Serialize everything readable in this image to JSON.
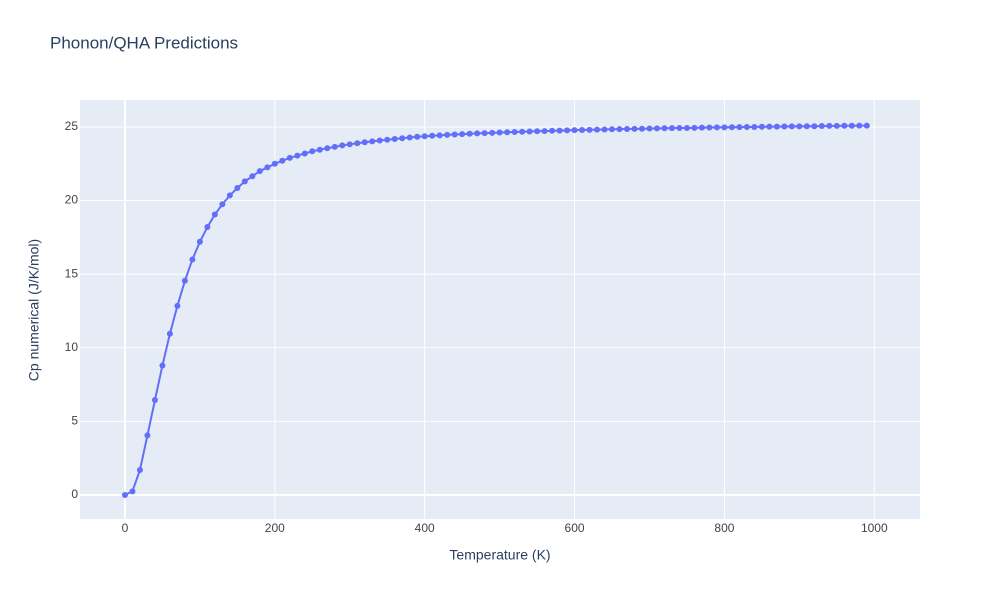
{
  "chart_data": {
    "type": "line",
    "title": "Phonon/QHA Predictions",
    "x_label": "Temperature (K)",
    "y_label": "Cp numerical (J/K/mol)",
    "x": [
      0,
      10,
      20,
      30,
      40,
      50,
      60,
      70,
      80,
      90,
      100,
      110,
      120,
      130,
      140,
      150,
      160,
      170,
      180,
      190,
      200,
      210,
      220,
      230,
      240,
      250,
      260,
      270,
      280,
      290,
      300,
      310,
      320,
      330,
      340,
      350,
      360,
      370,
      380,
      390,
      400,
      410,
      420,
      430,
      440,
      450,
      460,
      470,
      480,
      490,
      500,
      510,
      520,
      530,
      540,
      550,
      560,
      570,
      580,
      590,
      600,
      610,
      620,
      630,
      640,
      650,
      660,
      670,
      680,
      690,
      700,
      710,
      720,
      730,
      740,
      750,
      760,
      770,
      780,
      790,
      800,
      810,
      820,
      830,
      840,
      850,
      860,
      870,
      880,
      890,
      900,
      910,
      920,
      930,
      940,
      950,
      960,
      970,
      980,
      990
    ],
    "series": [
      {
        "name": "Cp numerical",
        "color": "#636efa",
        "values": [
          0,
          0.25,
          1.7,
          4.05,
          6.45,
          8.8,
          10.95,
          12.85,
          14.55,
          16.0,
          17.2,
          18.2,
          19.05,
          19.75,
          20.35,
          20.85,
          21.3,
          21.65,
          22.0,
          22.25,
          22.5,
          22.7,
          22.9,
          23.05,
          23.2,
          23.35,
          23.45,
          23.55,
          23.65,
          23.75,
          23.82,
          23.89,
          23.96,
          24.02,
          24.08,
          24.13,
          24.18,
          24.23,
          24.28,
          24.33,
          24.37,
          24.4,
          24.43,
          24.46,
          24.49,
          24.51,
          24.54,
          24.56,
          24.58,
          24.6,
          24.62,
          24.64,
          24.66,
          24.67,
          24.69,
          24.71,
          24.72,
          24.74,
          24.75,
          24.77,
          24.78,
          24.79,
          24.8,
          24.82,
          24.83,
          24.84,
          24.85,
          24.86,
          24.87,
          24.88,
          24.89,
          24.9,
          24.91,
          24.92,
          24.93,
          24.93,
          24.94,
          24.95,
          24.96,
          24.97,
          24.97,
          24.98,
          24.99,
          25.0,
          25.0,
          25.01,
          25.02,
          25.02,
          25.03,
          25.04,
          25.04,
          25.05,
          25.05,
          25.06,
          25.07,
          25.07,
          25.08,
          25.08,
          25.09,
          25.09
        ]
      }
    ],
    "xlim": [
      -60,
      1061
    ],
    "xticks": [
      0,
      200,
      400,
      600,
      800,
      1000
    ],
    "ylim": [
      -1.63,
      26.83
    ],
    "yticks": [
      0,
      5,
      10,
      15,
      20,
      25
    ],
    "grid": true
  }
}
